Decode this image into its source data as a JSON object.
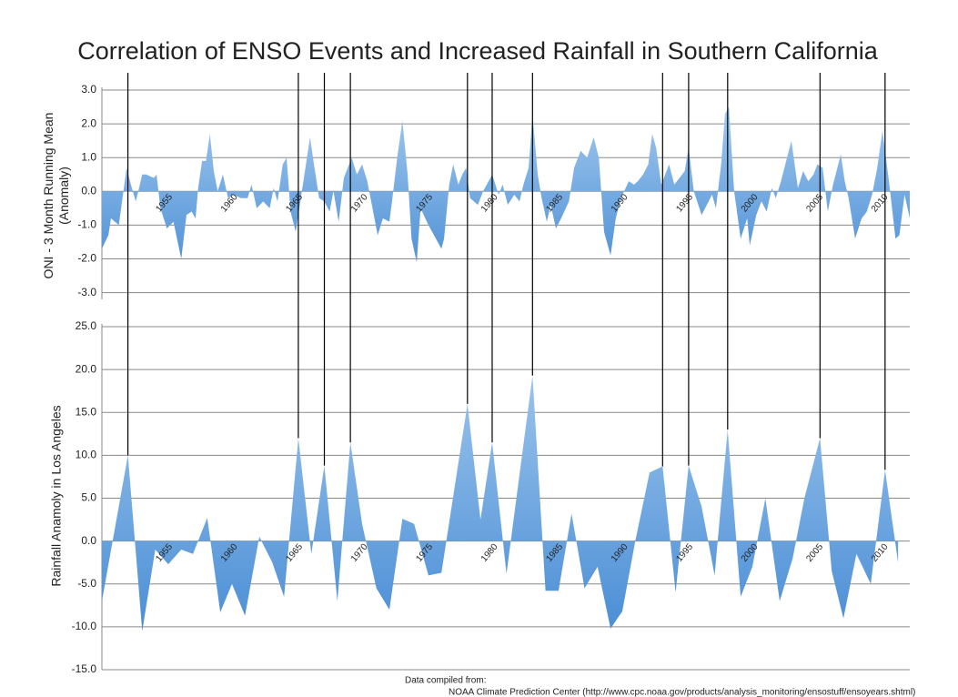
{
  "chart_data": [
    {
      "type": "area",
      "title": "Correlation of ENSO Events and Increased Rainfall in Southern California",
      "y_label": "ONI - 3 Month Running Mean (Anomaly)",
      "color": [
        "#a9cef0",
        "#3f86d2"
      ],
      "x": [
        1950.2,
        1950.7,
        1950.9,
        1951.5,
        1952.1,
        1952.5,
        1952.8,
        1953.0,
        1953.3,
        1953.6,
        1954.2,
        1954.4,
        1954.7,
        1955.2,
        1955.7,
        1956.3,
        1956.7,
        1957.1,
        1957.4,
        1957.6,
        1957.9,
        1958.2,
        1958.5,
        1958.8,
        1959.1,
        1959.5,
        1959.9,
        1960.3,
        1960.9,
        1961.4,
        1961.7,
        1962.1,
        1962.6,
        1963.1,
        1963.4,
        1963.7,
        1964.1,
        1964.4,
        1964.7,
        1965.1,
        1966.2,
        1966.5,
        1966.9,
        1967.3,
        1967.7,
        1968.0,
        1968.4,
        1968.8,
        1969.4,
        1969.8,
        1970.2,
        1970.6,
        1970.9,
        1971.4,
        1971.8,
        1972.3,
        1972.5,
        1972.9,
        1973.3,
        1973.7,
        1974.0,
        1974.4,
        1974.7,
        1975.3,
        1976.3,
        1976.5,
        1976.9,
        1977.2,
        1977.6,
        1977.9,
        1978.2,
        1978.5,
        1979.1,
        1979.5,
        1980.2,
        1980.7,
        1981.0,
        1981.4,
        1981.9,
        1982.3,
        1982.6,
        1983.0,
        1983.3,
        1983.7,
        1984.0,
        1984.4,
        1984.7,
        1985.1,
        1985.5,
        1986.1,
        1986.5,
        1987.0,
        1987.5,
        1988.0,
        1988.4,
        1988.8,
        1989.3,
        1989.7,
        1990.1,
        1990.7,
        1991.1,
        1991.4,
        1991.8,
        1992.2,
        1992.5,
        1992.8,
        1993.2,
        1993.5,
        1993.8,
        1994.2,
        1994.6,
        1995.0,
        1995.3,
        1995.7,
        1996.3,
        1996.7,
        1997.1,
        1997.4,
        1997.8,
        1998.1,
        1998.4,
        1998.8,
        1999.3,
        1999.8,
        2000.0,
        2000.5,
        2000.9,
        2001.3,
        2001.7,
        2002.0,
        2002.4,
        2003.0,
        2003.2,
        2003.7,
        2004.1,
        2004.5,
        2004.9,
        2005.2,
        2005.6,
        2006.0,
        2006.4,
        2007.0,
        2007.3,
        2007.6,
        2008.1,
        2008.6,
        2009.0,
        2009.4,
        2009.8,
        2010.2,
        2010.7,
        2011.2,
        2011.5,
        2011.9,
        2012.3
      ],
      "values": [
        -1.7,
        -1.3,
        -0.8,
        -1.0,
        0.7,
        0.1,
        -0.3,
        0.0,
        0.5,
        0.5,
        0.4,
        0.5,
        -0.5,
        -1.1,
        -0.9,
        -2.0,
        -0.7,
        -0.6,
        -0.8,
        0.1,
        0.9,
        0.9,
        1.7,
        0.6,
        0.0,
        0.5,
        -0.2,
        -0.1,
        -0.2,
        -0.2,
        0.2,
        -0.5,
        -0.3,
        -0.5,
        0.1,
        -0.3,
        0.8,
        1.0,
        -0.6,
        -1.2,
        1.6,
        0.8,
        -0.2,
        -0.3,
        -0.6,
        0.0,
        -0.9,
        0.4,
        1.0,
        0.5,
        0.8,
        0.3,
        -0.3,
        -1.3,
        -0.8,
        -0.9,
        -0.3,
        1.0,
        2.1,
        0.5,
        -1.4,
        -2.1,
        -0.5,
        -1.0,
        -1.7,
        -1.4,
        0.2,
        0.8,
        0.2,
        0.5,
        0.7,
        -0.2,
        -0.4,
        0.0,
        0.5,
        -0.1,
        0.2,
        -0.4,
        -0.1,
        -0.3,
        0.2,
        0.7,
        2.3,
        0.5,
        -0.2,
        -0.9,
        -0.4,
        -1.1,
        -0.8,
        -0.3,
        0.7,
        1.2,
        1.0,
        1.6,
        1.0,
        -1.2,
        -1.9,
        -0.8,
        -0.2,
        0.3,
        0.2,
        0.3,
        0.5,
        0.8,
        1.7,
        1.3,
        0.2,
        0.5,
        0.8,
        0.2,
        0.4,
        0.6,
        1.3,
        0.0,
        -0.7,
        -0.4,
        -0.1,
        -0.5,
        0.8,
        2.3,
        2.5,
        0.0,
        -1.4,
        -0.8,
        -1.6,
        -0.7,
        -0.3,
        -0.6,
        0.1,
        -0.2,
        0.3,
        1.2,
        1.5,
        0.1,
        0.6,
        0.3,
        0.5,
        0.8,
        0.7,
        -0.6,
        0.2,
        1.1,
        0.3,
        -0.2,
        -1.4,
        -0.8,
        -0.6,
        -0.1,
        0.7,
        1.8,
        0.3,
        -1.4,
        -1.3,
        -0.1,
        -0.8
      ],
      "xlim": [
        1950.2,
        2012.3
      ],
      "xticks": [
        1955,
        1960,
        1965,
        1970,
        1975,
        1980,
        1985,
        1990,
        1995,
        2000,
        2005,
        2010
      ],
      "ylim": [
        -3.2,
        3.0
      ],
      "yticks": [
        {
          "value": 3,
          "label": "3.0"
        },
        {
          "value": 2,
          "label": "2.0"
        },
        {
          "value": 1,
          "label": "1.0"
        },
        {
          "value": 0,
          "label": "0.0"
        },
        {
          "value": -1,
          "label": "-1.0"
        },
        {
          "value": -2,
          "label": "-2.0"
        },
        {
          "value": -3,
          "label": "-3.0"
        }
      ],
      "grid": true
    },
    {
      "type": "area",
      "y_label": "Rainfall Anamoly in Los Angeles",
      "color": [
        "#a9cef0",
        "#3f86d2"
      ],
      "x": [
        1950.2,
        1952.2,
        1953.3,
        1954.3,
        1955.3,
        1956.3,
        1957.2,
        1958.3,
        1959.3,
        1960.2,
        1961.2,
        1962.3,
        1963.3,
        1964.2,
        1965.3,
        1966.3,
        1967.3,
        1968.3,
        1969.3,
        1970.2,
        1971.3,
        1972.3,
        1973.3,
        1974.2,
        1975.3,
        1976.3,
        1978.3,
        1979.3,
        1980.2,
        1981.3,
        1983.3,
        1984.3,
        1985.3,
        1986.3,
        1987.3,
        1988.3,
        1989.3,
        1990.2,
        1991.2,
        1992.3,
        1993.3,
        1994.3,
        1995.3,
        1996.3,
        1997.3,
        1998.3,
        1999.3,
        2000.2,
        2001.2,
        2002.3,
        2003.3,
        2004.2,
        2005.4,
        2006.3,
        2007.2,
        2008.2,
        2009.3,
        2010.4,
        2011.4
      ],
      "values": [
        -7,
        10,
        -10.5,
        -1,
        -2.7,
        -1,
        -1.5,
        2.7,
        -8.3,
        -5,
        -8.7,
        0.5,
        -2.5,
        -6.5,
        12,
        -1.5,
        8.8,
        -7,
        11.5,
        2,
        -5.5,
        -8,
        2.6,
        2,
        -4,
        -3.7,
        16,
        2.5,
        11.5,
        -3.8,
        19.3,
        -5.8,
        -5.8,
        3.2,
        -5.5,
        -3,
        -10.2,
        -8.2,
        0,
        8,
        8.7,
        -6,
        8.8,
        4,
        -4,
        13,
        -6.5,
        -3,
        5,
        -7,
        -2,
        5,
        12,
        -3.5,
        -9,
        -1.5,
        -5,
        8.3,
        -2.5
      ],
      "events": [
        1952.2,
        1965.3,
        1967.3,
        1969.3,
        1978.3,
        1980.2,
        1983.3,
        1993.3,
        1995.3,
        1998.3,
        2005.4,
        2010.4
      ],
      "xlim": [
        1950.2,
        2012.3
      ],
      "xticks": [
        1955,
        1960,
        1965,
        1970,
        1975,
        1980,
        1985,
        1990,
        1995,
        2000,
        2005,
        2010
      ],
      "ylim": [
        -15,
        25
      ],
      "yticks": [
        {
          "value": 25,
          "label": "25.0"
        },
        {
          "value": 20,
          "label": "20.0"
        },
        {
          "value": 15,
          "label": "15.0"
        },
        {
          "value": 10,
          "label": "10.0"
        },
        {
          "value": 5,
          "label": "5.0"
        },
        {
          "value": 0,
          "label": "0.0"
        },
        {
          "value": -5,
          "label": "-5.0"
        },
        {
          "value": -10,
          "label": "-10.0"
        },
        {
          "value": -15,
          "label": "-15.0"
        }
      ],
      "grid": true,
      "notes": [
        "Data compiled from:",
        "NOAA Climate Prediction Center (http://www.cpc.noaa.gov/products/analysis_monitoring/ensostuff/ensoyears.shtml)"
      ]
    }
  ]
}
